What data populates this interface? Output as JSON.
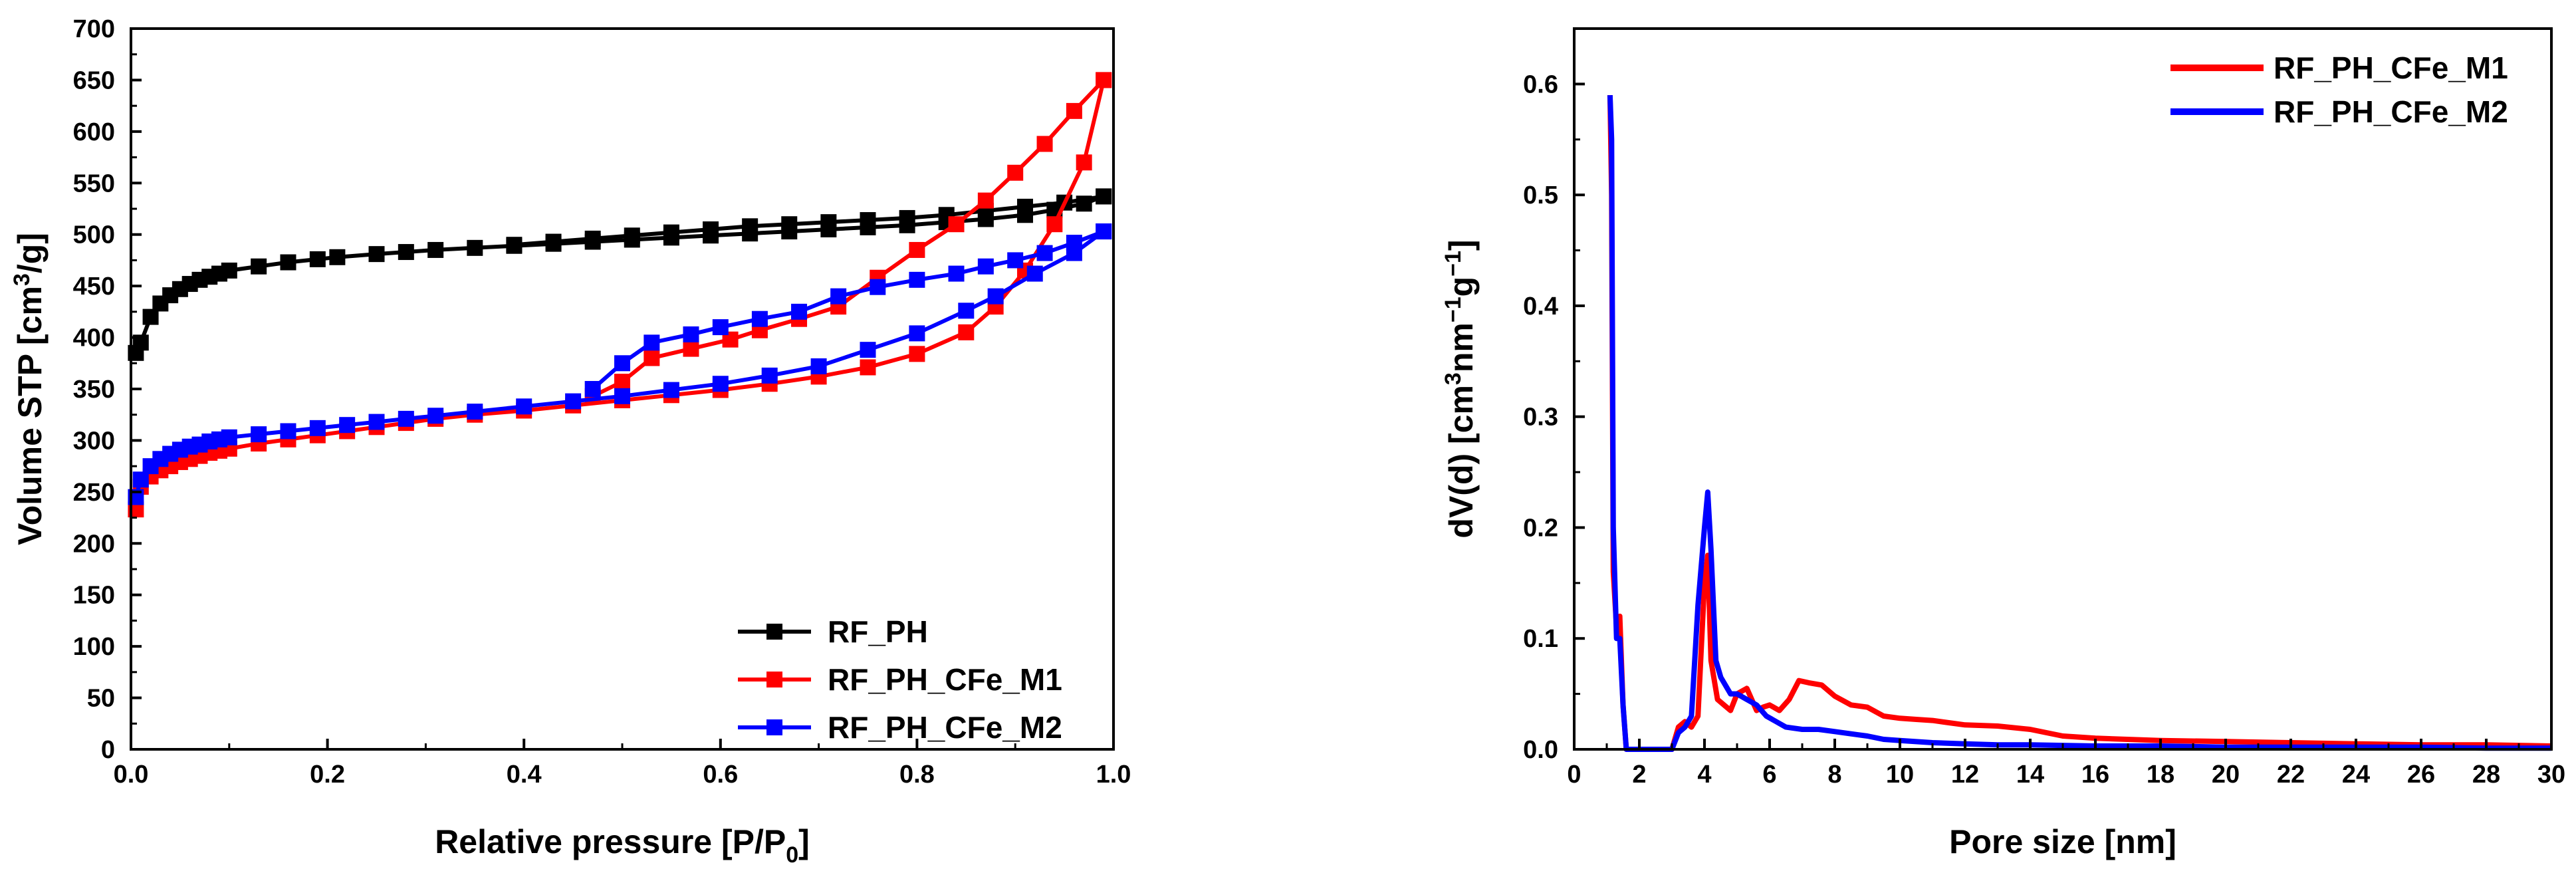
{
  "chart_data": [
    {
      "type": "line",
      "xlabel_main": "Relative pressure [P/P",
      "xlabel_sub": "0",
      "xlabel_close": "]",
      "ylabel_main": "Volume STP [cm",
      "ylabel_sup": "3",
      "ylabel_close": "/g]",
      "xlim": [
        0.0,
        1.0
      ],
      "ylim": [
        0,
        700
      ],
      "xticks": [
        "0.0",
        "0.2",
        "0.4",
        "0.6",
        "0.8",
        "1.0"
      ],
      "yticks": [
        "0",
        "50",
        "100",
        "150",
        "200",
        "250",
        "300",
        "350",
        "400",
        "450",
        "500",
        "550",
        "600",
        "650",
        "700"
      ],
      "legend_position": "bottom-right",
      "series": [
        {
          "name": "RF_PH",
          "color": "#000000",
          "marker": "square",
          "adsorption": {
            "x": [
              0.005,
              0.01,
              0.02,
              0.03,
              0.04,
              0.05,
              0.06,
              0.07,
              0.08,
              0.09,
              0.1,
              0.13,
              0.16,
              0.19,
              0.21,
              0.25,
              0.28,
              0.31,
              0.35,
              0.39,
              0.43,
              0.47,
              0.51,
              0.55,
              0.59,
              0.63,
              0.67,
              0.71,
              0.75,
              0.79,
              0.83,
              0.87,
              0.91,
              0.94,
              0.97,
              0.99
            ],
            "y": [
              385,
              395,
              420,
              433,
              441,
              447,
              452,
              456,
              459,
              462,
              465,
              469,
              473,
              476,
              478,
              481,
              483,
              485,
              487,
              489,
              491,
              493,
              495,
              497,
              499,
              501,
              503,
              505,
              507,
              509,
              512,
              515,
              519,
              524,
              530,
              537
            ]
          },
          "desorption": {
            "x": [
              0.99,
              0.95,
              0.91,
              0.87,
              0.83,
              0.79,
              0.75,
              0.71,
              0.67,
              0.63,
              0.59,
              0.55,
              0.51,
              0.47,
              0.43,
              0.39
            ],
            "y": [
              537,
              531,
              527,
              523,
              519,
              516,
              514,
              512,
              510,
              508,
              505,
              502,
              499,
              496,
              493,
              490
            ]
          }
        },
        {
          "name": "RF_PH_CFe_M1",
          "color": "#ff0000",
          "marker": "square",
          "adsorption": {
            "x": [
              0.005,
              0.01,
              0.02,
              0.03,
              0.04,
              0.05,
              0.06,
              0.07,
              0.08,
              0.09,
              0.1,
              0.13,
              0.16,
              0.19,
              0.22,
              0.25,
              0.28,
              0.31,
              0.35,
              0.4,
              0.45,
              0.5,
              0.55,
              0.6,
              0.65,
              0.7,
              0.75,
              0.8,
              0.85,
              0.88,
              0.91,
              0.94,
              0.97,
              0.99
            ],
            "y": [
              233,
              255,
              265,
              271,
              275,
              279,
              282,
              285,
              288,
              290,
              292,
              297,
              301,
              305,
              309,
              313,
              317,
              321,
              325,
              329,
              334,
              339,
              344,
              349,
              355,
              362,
              371,
              384,
              405,
              430,
              465,
              510,
              570,
              650
            ]
          },
          "desorption": {
            "x": [
              0.99,
              0.96,
              0.93,
              0.9,
              0.87,
              0.84,
              0.8,
              0.76,
              0.72,
              0.68,
              0.64,
              0.61,
              0.57,
              0.53,
              0.5,
              0.47
            ],
            "y": [
              650,
              620,
              588,
              560,
              533,
              510,
              485,
              458,
              430,
              418,
              407,
              398,
              389,
              380,
              357,
              343
            ]
          }
        },
        {
          "name": "RF_PH_CFe_M2",
          "color": "#0000ff",
          "marker": "square",
          "adsorption": {
            "x": [
              0.005,
              0.01,
              0.02,
              0.03,
              0.04,
              0.05,
              0.06,
              0.07,
              0.08,
              0.09,
              0.1,
              0.13,
              0.16,
              0.19,
              0.22,
              0.25,
              0.28,
              0.31,
              0.35,
              0.4,
              0.45,
              0.5,
              0.55,
              0.6,
              0.65,
              0.7,
              0.75,
              0.8,
              0.85,
              0.88,
              0.92,
              0.96,
              0.99
            ],
            "y": [
              245,
              262,
              275,
              282,
              287,
              291,
              294,
              296,
              299,
              301,
              303,
              306,
              309,
              312,
              315,
              318,
              321,
              324,
              328,
              333,
              338,
              343,
              349,
              355,
              363,
              372,
              388,
              404,
              426,
              440,
              462,
              482,
              503
            ]
          },
          "desorption": {
            "x": [
              0.99,
              0.96,
              0.93,
              0.9,
              0.87,
              0.84,
              0.8,
              0.76,
              0.72,
              0.68,
              0.64,
              0.6,
              0.57,
              0.53,
              0.5,
              0.47
            ],
            "y": [
              503,
              492,
              482,
              475,
              469,
              462,
              456,
              449,
              440,
              425,
              418,
              410,
              403,
              395,
              375,
              350
            ]
          }
        }
      ]
    },
    {
      "type": "line",
      "xlabel": "Pore size [nm]",
      "ylabel_main": "dV(d) [cm",
      "ylabel_sup1": "3",
      "ylabel_mid": "nm",
      "ylabel_sup2": "−1",
      "ylabel_mid2": "g",
      "ylabel_sup3": "−1",
      "ylabel_close": "]",
      "xlim": [
        0,
        30
      ],
      "ylim": [
        0,
        0.65
      ],
      "xticks": [
        "0",
        "2",
        "4",
        "6",
        "8",
        "10",
        "12",
        "14",
        "16",
        "18",
        "20",
        "22",
        "24",
        "26",
        "28",
        "30"
      ],
      "yticks": [
        "0.0",
        "0.1",
        "0.2",
        "0.3",
        "0.4",
        "0.5",
        "0.6"
      ],
      "legend_position": "top-right",
      "series": [
        {
          "name": "RF_PH_CFe_M1",
          "color": "#ff0000",
          "x": [
            1.1,
            1.15,
            1.2,
            1.3,
            1.4,
            1.5,
            1.6,
            1.7,
            1.8,
            2.5,
            3.0,
            3.2,
            3.4,
            3.6,
            3.8,
            4.0,
            4.1,
            4.2,
            4.4,
            4.6,
            4.8,
            5.0,
            5.3,
            5.6,
            5.8,
            6.0,
            6.3,
            6.6,
            6.9,
            7.2,
            7.6,
            8.0,
            8.5,
            9.0,
            9.5,
            10.0,
            10.5,
            11.0,
            11.5,
            12.0,
            13.0,
            14.0,
            15.0,
            16.0,
            18.0,
            20.0,
            22.0,
            24.0,
            26.0,
            28.0,
            30.0
          ],
          "y": [
            0.59,
            0.5,
            0.16,
            0.11,
            0.12,
            0.04,
            0.0,
            0.0,
            0.0,
            0.0,
            0.0,
            0.02,
            0.025,
            0.02,
            0.03,
            0.15,
            0.175,
            0.08,
            0.045,
            0.04,
            0.035,
            0.05,
            0.055,
            0.035,
            0.038,
            0.04,
            0.035,
            0.045,
            0.062,
            0.06,
            0.058,
            0.048,
            0.04,
            0.038,
            0.03,
            0.028,
            0.027,
            0.026,
            0.024,
            0.022,
            0.021,
            0.018,
            0.012,
            0.01,
            0.008,
            0.007,
            0.006,
            0.005,
            0.004,
            0.004,
            0.003
          ]
        },
        {
          "name": "RF_PH_CFe_M2",
          "color": "#0000ff",
          "x": [
            1.1,
            1.15,
            1.2,
            1.3,
            1.4,
            1.5,
            1.6,
            1.7,
            1.8,
            2.5,
            3.0,
            3.2,
            3.4,
            3.6,
            3.8,
            4.0,
            4.1,
            4.2,
            4.35,
            4.5,
            4.8,
            5.0,
            5.3,
            5.6,
            5.9,
            6.2,
            6.5,
            7.0,
            7.5,
            8.0,
            8.5,
            9.0,
            9.5,
            10.0,
            11.0,
            12.0,
            13.0,
            14.0,
            16.0,
            18.0,
            20.0,
            22.0,
            24.0,
            26.0,
            28.0,
            30.0
          ],
          "y": [
            0.59,
            0.55,
            0.2,
            0.1,
            0.1,
            0.04,
            0.0,
            0.0,
            0.0,
            0.0,
            0.0,
            0.015,
            0.02,
            0.03,
            0.13,
            0.2,
            0.232,
            0.18,
            0.08,
            0.065,
            0.05,
            0.05,
            0.045,
            0.04,
            0.03,
            0.025,
            0.02,
            0.018,
            0.018,
            0.016,
            0.014,
            0.012,
            0.009,
            0.008,
            0.006,
            0.005,
            0.004,
            0.004,
            0.003,
            0.003,
            0.002,
            0.002,
            0.002,
            0.002,
            0.001,
            0.001
          ]
        }
      ]
    }
  ]
}
